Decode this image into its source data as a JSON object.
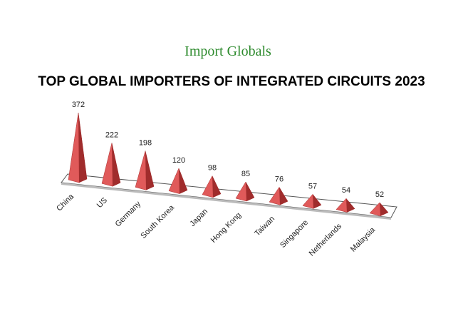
{
  "chart_data": {
    "type": "pyramid",
    "brand": "Import Globals",
    "title": "TOP GLOBAL IMPORTERS OF INTEGRATED CIRCUITS  2023",
    "categories": [
      "China",
      "US",
      "Germany",
      "South Korea",
      "Japan",
      "Hong Kong",
      "Taiwan",
      "Singapore",
      "Netherlands",
      "Malaysia"
    ],
    "values": [
      372,
      222,
      198,
      120,
      98,
      85,
      76,
      57,
      54,
      52
    ],
    "color": "#e05a5a"
  }
}
